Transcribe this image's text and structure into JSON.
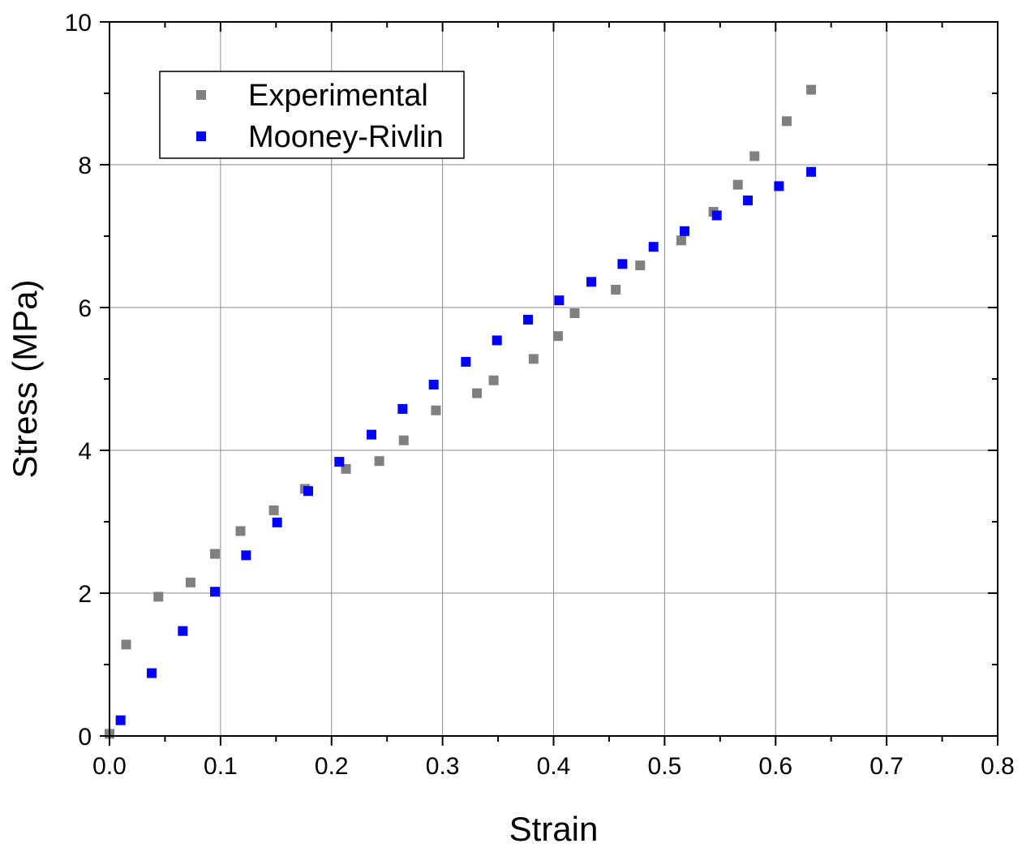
{
  "chart_data": {
    "type": "scatter",
    "title": "",
    "xlabel": "Strain",
    "ylabel": "Stress (MPa)",
    "xlim": [
      0.0,
      0.8
    ],
    "ylim": [
      0,
      10
    ],
    "x_ticks": [
      "0.0",
      "0.1",
      "0.2",
      "0.3",
      "0.4",
      "0.5",
      "0.6",
      "0.7",
      "0.8"
    ],
    "y_ticks": [
      "0",
      "2",
      "4",
      "6",
      "8",
      "10"
    ],
    "grid": true,
    "legend_position": "top-left",
    "series": [
      {
        "name": "Experimental",
        "color": "#808080",
        "marker": "square",
        "points": [
          [
            0.0,
            0.03
          ],
          [
            0.015,
            1.28
          ],
          [
            0.044,
            1.95
          ],
          [
            0.073,
            2.15
          ],
          [
            0.095,
            2.55
          ],
          [
            0.118,
            2.87
          ],
          [
            0.148,
            3.16
          ],
          [
            0.176,
            3.46
          ],
          [
            0.213,
            3.74
          ],
          [
            0.243,
            3.85
          ],
          [
            0.265,
            4.14
          ],
          [
            0.294,
            4.56
          ],
          [
            0.331,
            4.8
          ],
          [
            0.346,
            4.98
          ],
          [
            0.382,
            5.28
          ],
          [
            0.404,
            5.6
          ],
          [
            0.419,
            5.92
          ],
          [
            0.456,
            6.25
          ],
          [
            0.478,
            6.59
          ],
          [
            0.515,
            6.94
          ],
          [
            0.544,
            7.34
          ],
          [
            0.566,
            7.72
          ],
          [
            0.581,
            8.12
          ],
          [
            0.61,
            8.61
          ],
          [
            0.632,
            9.05
          ]
        ]
      },
      {
        "name": "Mooney-Rivlin",
        "color": "#0000ff",
        "marker": "square",
        "points": [
          [
            0.01,
            0.22
          ],
          [
            0.038,
            0.88
          ],
          [
            0.066,
            1.47
          ],
          [
            0.095,
            2.02
          ],
          [
            0.123,
            2.53
          ],
          [
            0.151,
            2.99
          ],
          [
            0.179,
            3.43
          ],
          [
            0.207,
            3.84
          ],
          [
            0.236,
            4.22
          ],
          [
            0.264,
            4.58
          ],
          [
            0.292,
            4.92
          ],
          [
            0.321,
            5.24
          ],
          [
            0.349,
            5.54
          ],
          [
            0.377,
            5.83
          ],
          [
            0.405,
            6.1
          ],
          [
            0.434,
            6.36
          ],
          [
            0.462,
            6.61
          ],
          [
            0.49,
            6.85
          ],
          [
            0.518,
            7.07
          ],
          [
            0.547,
            7.29
          ],
          [
            0.575,
            7.5
          ],
          [
            0.603,
            7.7
          ],
          [
            0.632,
            7.9
          ]
        ]
      }
    ]
  }
}
